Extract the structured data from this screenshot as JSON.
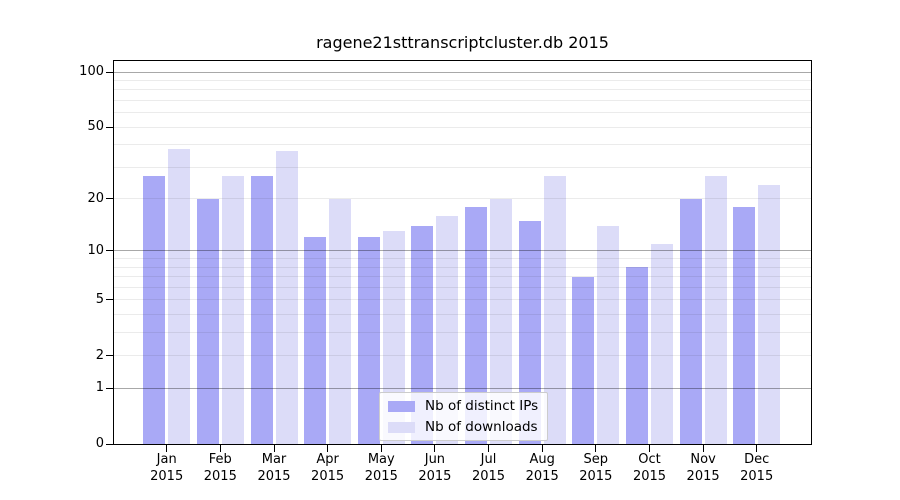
{
  "title": "ragene21sttranscriptcluster.db 2015",
  "chart_data": {
    "type": "bar",
    "title": "ragene21sttranscriptcluster.db 2015",
    "categories": [
      "Jan",
      "Feb",
      "Mar",
      "Apr",
      "May",
      "Jun",
      "Jul",
      "Aug",
      "Sep",
      "Oct",
      "Nov",
      "Dec"
    ],
    "category_year": "2015",
    "series": [
      {
        "name": "Nb of distinct IPs",
        "color": "#a9a9f6",
        "values": [
          27,
          20,
          27,
          12,
          12,
          14,
          18,
          15,
          7,
          8,
          20,
          18
        ]
      },
      {
        "name": "Nb of downloads",
        "color": "#dcdcf8",
        "values": [
          38,
          27,
          37,
          20,
          13,
          16,
          20,
          27,
          14,
          11,
          27,
          24
        ]
      }
    ],
    "yscale": "log10(1+x)",
    "ylim": [
      0,
      115
    ],
    "yticks": [
      0,
      1,
      2,
      5,
      10,
      20,
      50,
      100
    ],
    "ytick_labels": [
      "0",
      "1",
      "2",
      "5",
      "10",
      "20",
      "50",
      "100"
    ],
    "major_gridlines": [
      1,
      10,
      100
    ],
    "minor_gridlines": [
      2,
      3,
      4,
      5,
      6,
      7,
      8,
      9,
      20,
      30,
      40,
      50,
      60,
      70,
      80,
      90
    ],
    "grid": "on",
    "legend_position": "lower center"
  },
  "legend": {
    "items": [
      {
        "label": "Nb of distinct IPs",
        "color": "#a9a9f6"
      },
      {
        "label": "Nb of downloads",
        "color": "#dcdcf8"
      }
    ]
  },
  "colors": {
    "background": "#ffffff",
    "axis": "#000000",
    "bar_distinct_ips": "#a9a9f6",
    "bar_downloads": "#dcdcf8",
    "major_grid": "#a9a9a9",
    "minor_grid": "#ececec"
  }
}
